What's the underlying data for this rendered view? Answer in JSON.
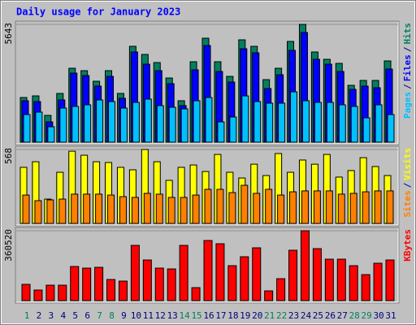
{
  "title": "Daily usage for January 2023",
  "legend_separator": "/",
  "chart_data": [
    {
      "type": "bar",
      "ylim": [
        0,
        5643
      ],
      "yticks": [
        5643
      ],
      "series": [
        {
          "name": "Hits",
          "color": "#008060",
          "values": [
            2140,
            2218,
            1284,
            2335,
            3541,
            3425,
            2919,
            3425,
            2335,
            4592,
            4203,
            3814,
            3074,
            1985,
            3853,
            4981,
            3853,
            3152,
            4903,
            4592,
            2996,
            3541,
            4826,
            5643,
            4320,
            3970,
            3775,
            2724,
            2958,
            2958,
            3892
          ]
        },
        {
          "name": "Files",
          "color": "#0000ff",
          "values": [
            1985,
            1946,
            973,
            2024,
            3308,
            3191,
            2685,
            3152,
            2101,
            4320,
            3736,
            3425,
            2802,
            1751,
            3464,
            4631,
            3386,
            2880,
            4476,
            4281,
            2569,
            3230,
            4398,
            5254,
            3970,
            3736,
            3386,
            2530,
            2685,
            2607,
            3503
          ]
        },
        {
          "name": "Pages",
          "color": "#00c0ff",
          "values": [
            1323,
            1440,
            739,
            1634,
            1712,
            1790,
            2024,
            1946,
            1634,
            1907,
            2063,
            1751,
            1673,
            1596,
            1985,
            2140,
            973,
            1206,
            2218,
            1946,
            1868,
            1868,
            2413,
            1985,
            1907,
            1907,
            1790,
            1712,
            1167,
            1790,
            1323
          ]
        }
      ]
    },
    {
      "type": "bar",
      "ylim": [
        0,
        568
      ],
      "yticks": [
        568
      ],
      "series": [
        {
          "name": "Visits",
          "color": "#ffff00",
          "values": [
            431,
            474,
            187,
            393,
            555,
            524,
            474,
            468,
            431,
            412,
            568,
            474,
            331,
            431,
            449,
            399,
            530,
            393,
            349,
            455,
            368,
            537,
            393,
            487,
            455,
            530,
            356,
            406,
            505,
            437,
            368
          ]
        },
        {
          "name": "Sites",
          "color": "#ff8000",
          "values": [
            218,
            175,
            181,
            187,
            225,
            225,
            225,
            218,
            206,
            200,
            231,
            225,
            200,
            200,
            218,
            262,
            262,
            237,
            293,
            231,
            262,
            218,
            243,
            250,
            250,
            250,
            225,
            231,
            243,
            250,
            250
          ]
        }
      ]
    },
    {
      "type": "bar",
      "ylim": [
        0,
        360520
      ],
      "yticks": [
        360520
      ],
      "categories": [
        "1",
        "2",
        "3",
        "4",
        "5",
        "6",
        "7",
        "8",
        "9",
        "10",
        "11",
        "12",
        "13",
        "14",
        "15",
        "16",
        "17",
        "18",
        "19",
        "20",
        "21",
        "22",
        "23",
        "24",
        "25",
        "26",
        "27",
        "28",
        "29",
        "30",
        "31"
      ],
      "category_colors": [
        "#008060",
        "#000080",
        "#000080",
        "#000080",
        "#000080",
        "#000080",
        "#008060",
        "#008060",
        "#000080",
        "#000080",
        "#000080",
        "#000080",
        "#000080",
        "#008060",
        "#008060",
        "#000080",
        "#000080",
        "#000080",
        "#000080",
        "#000080",
        "#008060",
        "#008060",
        "#000080",
        "#000080",
        "#000080",
        "#000080",
        "#000080",
        "#008060",
        "#008060",
        "#000080",
        "#000080"
      ],
      "series": [
        {
          "name": "KBytes",
          "color": "#ff0000",
          "values": [
            83840,
            54496,
            79648,
            79648,
            176064,
            167680,
            171872,
            108992,
            100608,
            285056,
            209600,
            167680,
            163488,
            285056,
            67072,
            310208,
            293440,
            180256,
            226368,
            272480,
            50304,
            113184,
            259904,
            360520,
            268288,
            213792,
            213792,
            180256,
            134144,
            192832,
            209600
          ]
        }
      ]
    }
  ]
}
